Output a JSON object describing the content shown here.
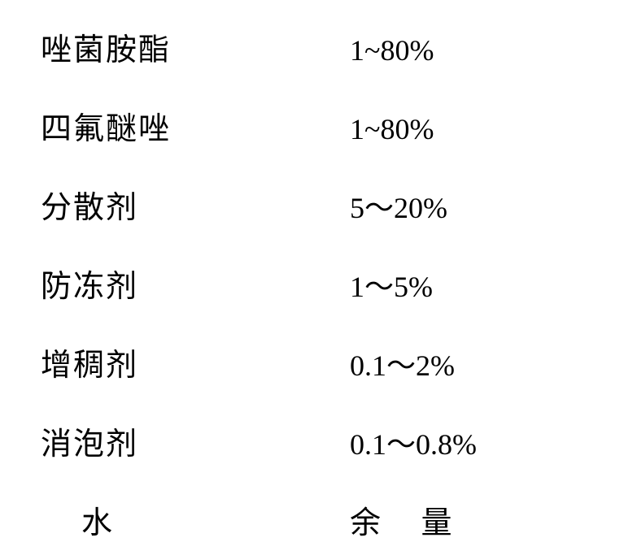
{
  "rows": [
    {
      "label": "唑菌胺酯",
      "value": "1~80%",
      "label_class": "label",
      "value_class": "value"
    },
    {
      "label": "四氟醚唑",
      "value": "1~80%",
      "label_class": "label",
      "value_class": "value"
    },
    {
      "label": "分散剂",
      "value": "5～20%",
      "label_class": "label",
      "value_class": "value"
    },
    {
      "label": "防冻剂",
      "value": "1～5%",
      "label_class": "label",
      "value_class": "value"
    },
    {
      "label": "增稠剂",
      "value": "0.1～2%",
      "label_class": "label",
      "value_class": "value"
    },
    {
      "label": "消泡剂",
      "value": "0.1～0.8%",
      "label_class": "label",
      "value_class": "value"
    },
    {
      "label": "水",
      "value": "余 量",
      "label_class": "label label-indent",
      "value_class": "value-cn"
    }
  ],
  "style": {
    "background_color": "#ffffff",
    "text_color": "#000000",
    "label_fontsize": 38,
    "value_fontsize": 36,
    "row_spacing": 42,
    "label_width": 380,
    "font_family_cn": "SimSun",
    "font_family_num": "Times New Roman"
  }
}
